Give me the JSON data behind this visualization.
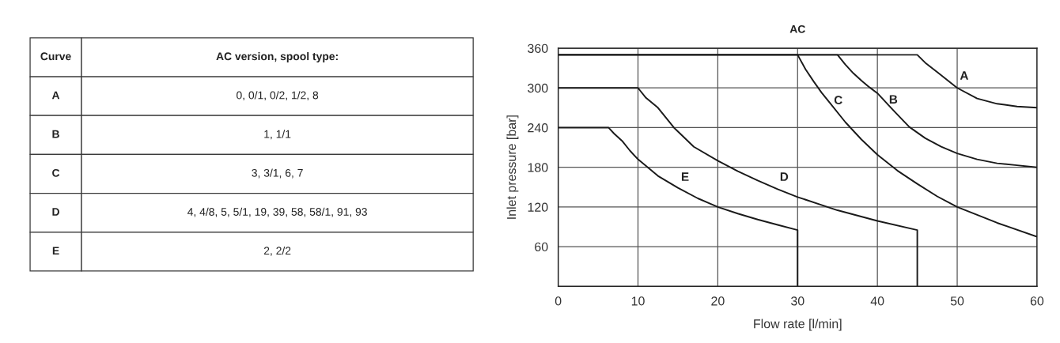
{
  "chart_data": [
    {
      "type": "other",
      "annotations": [
        "Curve",
        "AC version, spool type:",
        "A",
        "0, 0/1, 0/2, 1/2, 8",
        "B",
        "1, 1/1",
        "C",
        "3, 3/1, 6, 7",
        "D",
        "4, 4/8, 5, 5/1, 19, 39, 58, 58/1, 91, 93",
        "E",
        "2, 2/2"
      ]
    },
    {
      "type": "line",
      "title": "AC",
      "xlabel": "Flow rate [l/min]",
      "ylabel": "Inlet pressure [bar]",
      "xlim": [
        0,
        60
      ],
      "ylim": [
        0,
        360
      ],
      "xticks": [
        0,
        10,
        20,
        30,
        40,
        50,
        60
      ],
      "yticks": [
        60,
        120,
        180,
        240,
        300,
        360
      ],
      "grid": true,
      "series": [
        {
          "color": "#1a1a1a",
          "x": [
            0,
            45,
            46,
            47.5,
            50,
            52.5,
            55,
            57.5,
            60
          ],
          "values": [
            350,
            350,
            338,
            324,
            300,
            284,
            276,
            272,
            270
          ]
        },
        {
          "color": "#1a1a1a",
          "x": [
            0,
            35,
            36,
            37,
            38,
            39,
            40,
            42,
            44,
            46,
            48,
            50,
            52.5,
            55,
            57.5,
            60
          ],
          "values": [
            350,
            350,
            335,
            322,
            311,
            301,
            292,
            266,
            241,
            224,
            211,
            201,
            192,
            186,
            183,
            180
          ]
        },
        {
          "color": "#1a1a1a",
          "x": [
            0,
            30,
            31,
            32,
            33,
            34,
            36,
            38,
            40,
            42.5,
            45,
            47.5,
            50,
            55,
            60
          ],
          "values": [
            350,
            350,
            328,
            310,
            293,
            278,
            248,
            222,
            199,
            175,
            155,
            136,
            120,
            96,
            75
          ]
        },
        {
          "color": "#1a1a1a",
          "x": [
            0,
            10,
            11,
            12.5,
            14.5,
            17,
            20,
            22.5,
            25,
            27.5,
            30,
            35,
            40,
            45,
            45
          ],
          "values": [
            300,
            300,
            285,
            270,
            240,
            211,
            190,
            174,
            160,
            147,
            135,
            115,
            99,
            85,
            0
          ]
        },
        {
          "color": "#1a1a1a",
          "x": [
            0,
            6.3,
            7,
            8,
            9,
            10,
            12.5,
            15,
            17.5,
            20,
            22.5,
            25,
            27.5,
            30,
            30
          ],
          "values": [
            240,
            240,
            231,
            220,
            205,
            192,
            167,
            149,
            133,
            120,
            110,
            101,
            93,
            85,
            0
          ]
        }
      ],
      "annotations": [
        "A",
        "B",
        "C",
        "D",
        "E"
      ]
    }
  ]
}
